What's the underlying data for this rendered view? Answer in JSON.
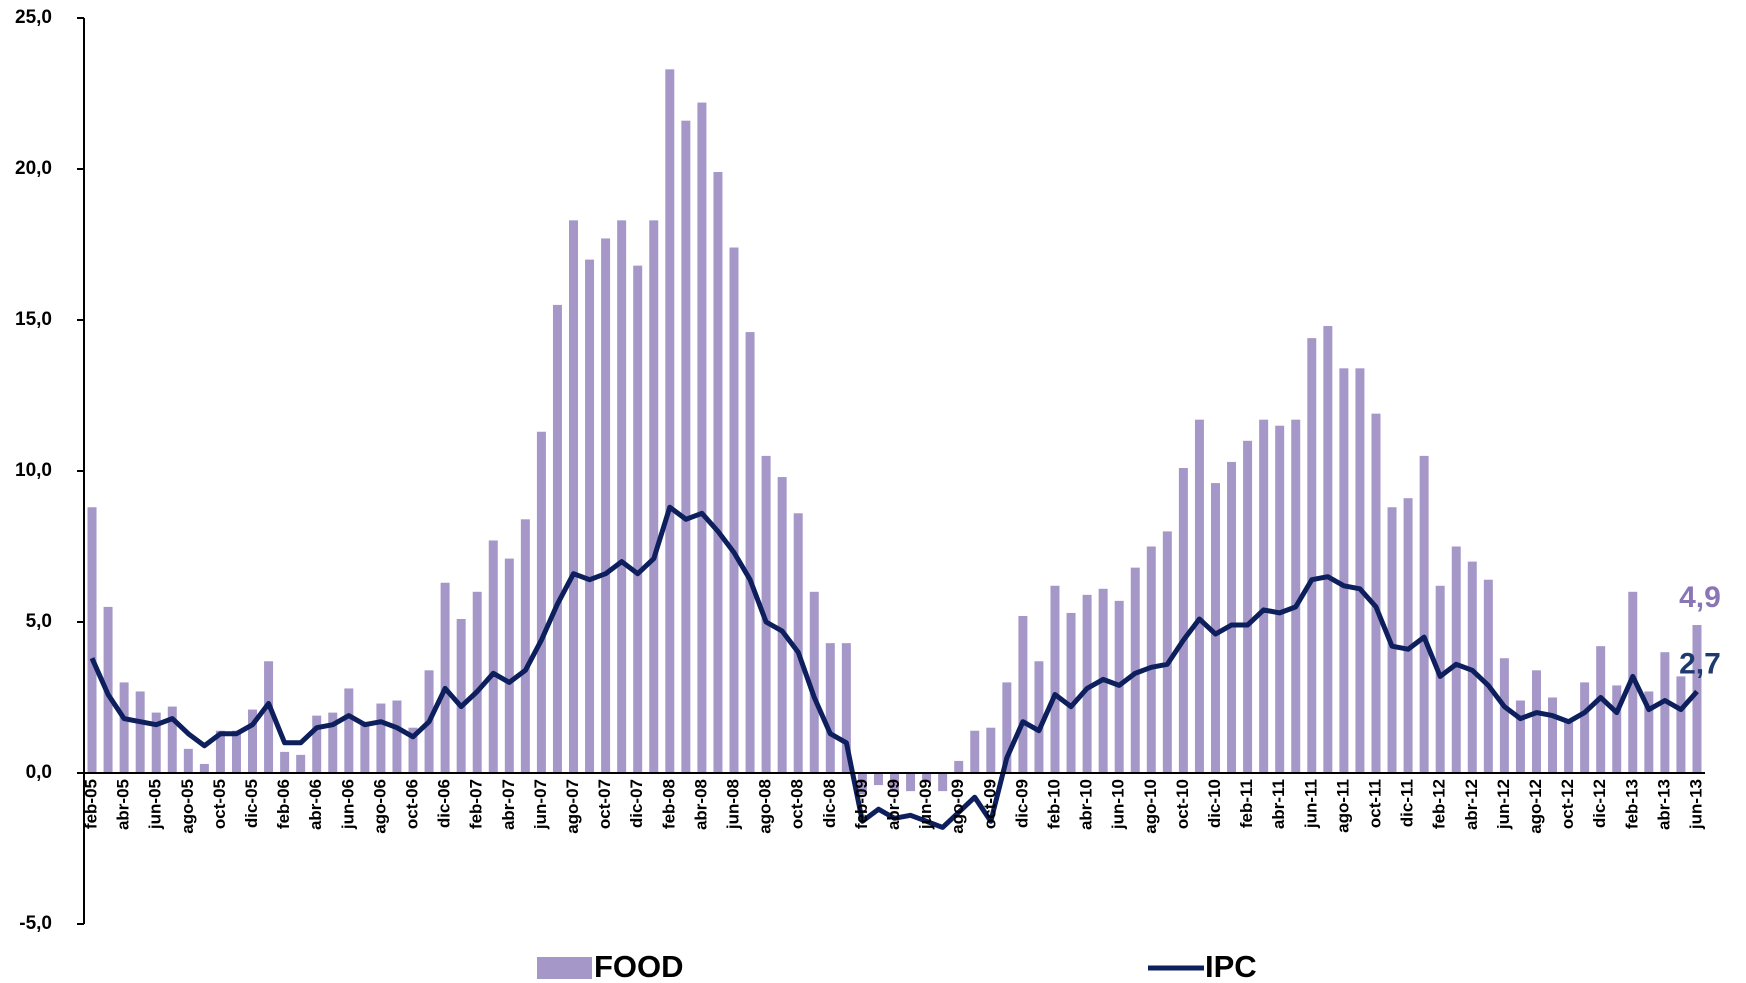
{
  "chart_data": {
    "type": "bar_line",
    "categories": [
      "feb-05",
      null,
      "abr-05",
      null,
      "jun-05",
      null,
      "ago-05",
      null,
      "oct-05",
      null,
      "dic-05",
      null,
      "feb-06",
      null,
      "abr-06",
      null,
      "jun-06",
      null,
      "ago-06",
      null,
      "oct-06",
      null,
      "dic-06",
      null,
      "feb-07",
      null,
      "abr-07",
      null,
      "jun-07",
      null,
      "ago-07",
      null,
      "oct-07",
      null,
      "dic-07",
      null,
      "feb-08",
      null,
      "abr-08",
      null,
      "jun-08",
      null,
      "ago-08",
      null,
      "oct-08",
      null,
      "dic-08",
      null,
      "feb-09",
      null,
      "abr-09",
      null,
      "jun-09",
      null,
      "ago-09",
      null,
      "oct-09",
      null,
      "dic-09",
      null,
      "feb-10",
      null,
      "abr-10",
      null,
      "jun-10",
      null,
      "ago-10",
      null,
      "oct-10",
      null,
      "dic-10",
      null,
      "feb-11",
      null,
      "abr-11",
      null,
      "jun-11",
      null,
      "ago-11",
      null,
      "oct-11",
      null,
      "dic-11",
      null,
      "feb-12",
      null,
      "abr-12",
      null,
      "jun-12",
      null,
      "ago-12",
      null,
      "oct-12",
      null,
      "dic-12",
      null,
      "feb-13",
      null,
      "abr-13",
      null,
      "jun-13"
    ],
    "series": [
      {
        "name": "FOOD",
        "type": "bar",
        "color": "#a597c8",
        "label_color": "#8a75b5",
        "values": [
          8.8,
          5.5,
          3.0,
          2.7,
          2.0,
          2.2,
          0.8,
          0.3,
          1.4,
          1.4,
          2.1,
          3.7,
          0.7,
          0.6,
          1.9,
          2.0,
          2.8,
          1.7,
          2.3,
          2.4,
          1.5,
          3.4,
          6.3,
          5.1,
          6.0,
          7.7,
          7.1,
          8.4,
          11.3,
          15.5,
          18.3,
          17.0,
          17.7,
          18.3,
          16.8,
          18.3,
          23.3,
          21.6,
          22.2,
          19.9,
          17.4,
          14.6,
          10.5,
          9.8,
          8.6,
          6.0,
          4.3,
          4.3,
          -0.7,
          -0.4,
          -0.6,
          -0.6,
          -0.3,
          -0.6,
          0.4,
          1.4,
          1.5,
          3.0,
          5.2,
          3.7,
          6.2,
          5.3,
          5.9,
          6.1,
          5.7,
          6.8,
          7.5,
          8.0,
          10.1,
          11.7,
          9.6,
          10.3,
          11.0,
          11.7,
          11.5,
          11.7,
          14.4,
          14.8,
          13.4,
          13.4,
          11.9,
          8.8,
          9.1,
          10.5,
          6.2,
          7.5,
          7.0,
          6.4,
          3.8,
          2.4,
          3.4,
          2.5,
          1.7,
          3.0,
          4.2,
          2.9,
          6.0,
          2.7,
          4.0,
          3.2,
          4.9
        ],
        "value_labels": [
          null,
          null,
          null,
          null,
          null,
          null,
          null,
          null,
          null,
          null,
          null,
          null,
          null,
          null,
          null,
          null,
          null,
          null,
          null,
          null,
          null,
          null,
          null,
          null,
          null,
          null,
          null,
          null,
          null,
          null,
          null,
          null,
          null,
          null,
          null,
          null,
          null,
          null,
          null,
          null,
          null,
          null,
          null,
          null,
          null,
          null,
          null,
          null,
          null,
          null,
          null,
          null,
          null,
          null,
          null,
          null,
          null,
          null,
          null,
          null,
          null,
          null,
          null,
          null,
          null,
          null,
          null,
          null,
          null,
          null,
          null,
          null,
          null,
          null,
          null,
          null,
          null,
          null,
          null,
          null,
          null,
          null,
          null,
          null,
          null,
          null,
          null,
          null,
          null,
          null,
          null,
          null,
          null,
          null,
          null,
          null,
          null,
          null,
          null,
          null,
          "4,9"
        ]
      },
      {
        "name": "IPC",
        "type": "line",
        "color": "#0d1f5c",
        "label_color": "#1f3a6e",
        "values": [
          3.8,
          2.6,
          1.8,
          1.7,
          1.6,
          1.8,
          1.3,
          0.9,
          1.3,
          1.3,
          1.6,
          2.3,
          1.0,
          1.0,
          1.5,
          1.6,
          1.9,
          1.6,
          1.7,
          1.5,
          1.2,
          1.7,
          2.8,
          2.2,
          2.7,
          3.3,
          3.0,
          3.4,
          4.4,
          5.6,
          6.6,
          6.4,
          6.6,
          7.0,
          6.6,
          7.1,
          8.8,
          8.4,
          8.6,
          8.0,
          7.3,
          6.4,
          5.0,
          4.7,
          4.0,
          2.5,
          1.3,
          1.0,
          -1.6,
          -1.2,
          -1.5,
          -1.4,
          -1.6,
          -1.8,
          -1.3,
          -0.8,
          -1.6,
          0.5,
          1.7,
          1.4,
          2.6,
          2.2,
          2.8,
          3.1,
          2.9,
          3.3,
          3.5,
          3.6,
          4.4,
          5.1,
          4.6,
          4.9,
          4.9,
          5.4,
          5.3,
          5.5,
          6.4,
          6.5,
          6.2,
          6.1,
          5.5,
          4.2,
          4.1,
          4.5,
          3.2,
          3.6,
          3.4,
          2.9,
          2.2,
          1.8,
          2.0,
          1.9,
          1.7,
          2.0,
          2.5,
          2.0,
          3.2,
          2.1,
          2.4,
          2.1,
          2.7
        ],
        "value_labels": [
          null,
          null,
          null,
          null,
          null,
          null,
          null,
          null,
          null,
          null,
          null,
          null,
          null,
          null,
          null,
          null,
          null,
          null,
          null,
          null,
          null,
          null,
          null,
          null,
          null,
          null,
          null,
          null,
          null,
          null,
          null,
          null,
          null,
          null,
          null,
          null,
          null,
          null,
          null,
          null,
          null,
          null,
          null,
          null,
          null,
          null,
          null,
          null,
          null,
          null,
          null,
          null,
          null,
          null,
          null,
          null,
          null,
          null,
          null,
          null,
          null,
          null,
          null,
          null,
          null,
          null,
          null,
          null,
          null,
          null,
          null,
          null,
          null,
          null,
          null,
          null,
          null,
          null,
          null,
          null,
          null,
          null,
          null,
          null,
          null,
          null,
          null,
          null,
          null,
          null,
          null,
          null,
          null,
          null,
          null,
          null,
          null,
          null,
          null,
          null,
          "2,7"
        ]
      }
    ],
    "ylim": [
      -5,
      25
    ],
    "yticks": [
      {
        "value": -5,
        "label": "-5,0"
      },
      {
        "value": 0,
        "label": "0,0"
      },
      {
        "value": 5,
        "label": "5,0"
      },
      {
        "value": 10,
        "label": "10,0"
      },
      {
        "value": 15,
        "label": "15,0"
      },
      {
        "value": 20,
        "label": "20,0"
      },
      {
        "value": 25,
        "label": "25,0"
      }
    ],
    "grid": false,
    "legend": "bottom"
  }
}
